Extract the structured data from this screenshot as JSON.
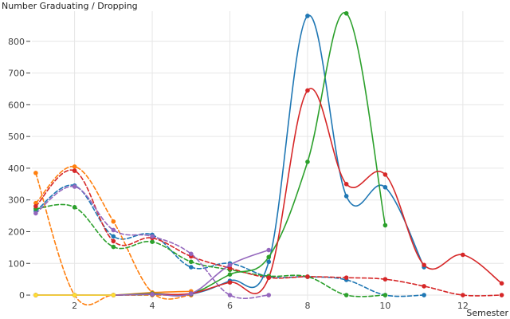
{
  "chart_data": {
    "type": "line",
    "ylabel": "Number Graduating / Dropping",
    "xlabel": "Semester",
    "xlim": [
      0.9,
      13.05
    ],
    "ylim": [
      -15,
      895
    ],
    "xticks": [
      2,
      4,
      6,
      8,
      10,
      12
    ],
    "yticks": [
      0,
      100,
      200,
      300,
      400,
      500,
      600,
      700,
      800
    ],
    "grid": true,
    "legend": "none",
    "series": [
      {
        "color": "#1f77b4",
        "dash": "solid",
        "x": [
          1,
          2,
          3,
          4,
          5,
          6,
          7,
          8,
          9,
          10,
          11
        ],
        "y": [
          0,
          0,
          0,
          2,
          3,
          45,
          105,
          880,
          312,
          340,
          88
        ]
      },
      {
        "color": "#ff7f0e",
        "dash": "solid",
        "x": [
          1,
          2,
          3,
          4,
          5
        ],
        "y": [
          0,
          0,
          0,
          8,
          12
        ]
      },
      {
        "color": "#2ca02c",
        "dash": "solid",
        "x": [
          1,
          2,
          3,
          4,
          5,
          6,
          7,
          8,
          9,
          10
        ],
        "y": [
          0,
          0,
          0,
          5,
          5,
          65,
          120,
          420,
          888,
          220
        ]
      },
      {
        "color": "#d62728",
        "dash": "solid",
        "x": [
          1,
          2,
          3,
          4,
          5,
          6,
          7,
          8,
          9,
          10,
          11,
          12,
          13
        ],
        "y": [
          0,
          0,
          0,
          3,
          5,
          40,
          55,
          645,
          350,
          380,
          95,
          127,
          37
        ]
      },
      {
        "color": "#9467bd",
        "dash": "solid",
        "x": [
          1,
          2,
          3,
          4,
          5,
          6,
          7
        ],
        "y": [
          0,
          0,
          0,
          3,
          5,
          95,
          142
        ]
      },
      {
        "color": "#ffdd33",
        "dash": "solid",
        "x": [
          1,
          2,
          3
        ],
        "y": [
          0,
          0,
          0
        ]
      },
      {
        "color": "#1f77b4",
        "dash": "dashed",
        "x": [
          1,
          2,
          3,
          4,
          5,
          6,
          7,
          8,
          9,
          10,
          11
        ],
        "y": [
          265,
          345,
          185,
          190,
          88,
          100,
          58,
          58,
          48,
          0,
          0
        ]
      },
      {
        "color": "#ff7f0e",
        "dash": "dashed",
        "x": [
          1,
          2,
          3,
          4,
          5
        ],
        "y": [
          385,
          0,
          0,
          0,
          0
        ]
      },
      {
        "color": "#ff7f0e",
        "dash": "dashed",
        "x": [
          1,
          2,
          3,
          4,
          5
        ],
        "y": [
          290,
          405,
          232,
          8,
          0
        ]
      },
      {
        "color": "#2ca02c",
        "dash": "dashed",
        "x": [
          1,
          2,
          3,
          4,
          5,
          6,
          7,
          8,
          9,
          10
        ],
        "y": [
          272,
          277,
          152,
          168,
          105,
          80,
          60,
          58,
          0,
          0
        ]
      },
      {
        "color": "#d62728",
        "dash": "dashed",
        "x": [
          1,
          2,
          3,
          4,
          5,
          6,
          7,
          8,
          9,
          10,
          11,
          12,
          13
        ],
        "y": [
          280,
          392,
          170,
          180,
          122,
          85,
          55,
          58,
          55,
          50,
          28,
          0,
          0
        ]
      },
      {
        "color": "#9467bd",
        "dash": "dashed",
        "x": [
          1,
          2,
          3,
          4,
          5,
          6,
          7
        ],
        "y": [
          258,
          342,
          205,
          185,
          130,
          0,
          0
        ]
      }
    ]
  }
}
